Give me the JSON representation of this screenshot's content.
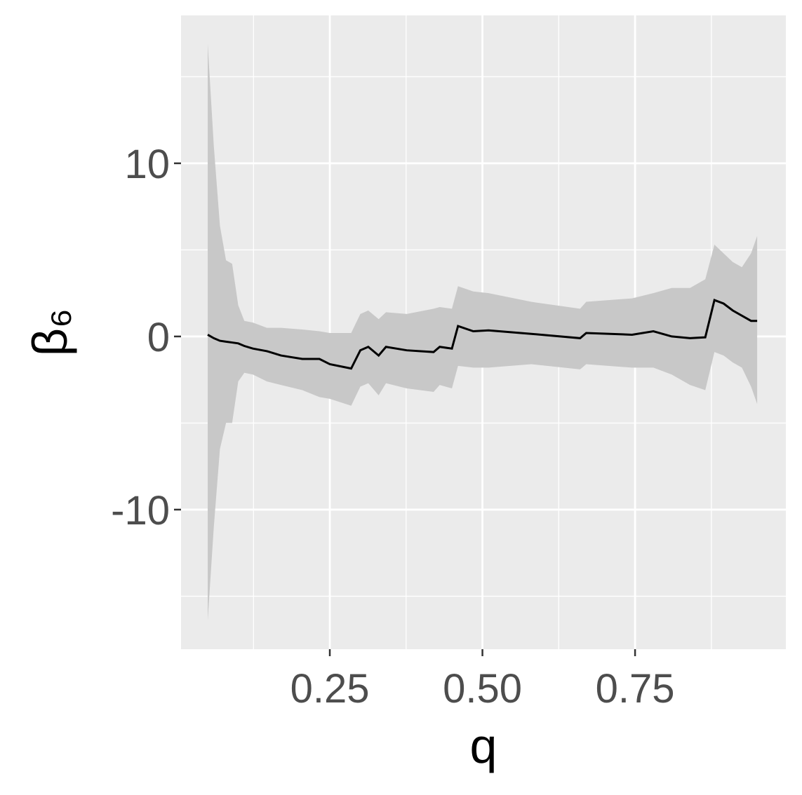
{
  "chart_data": {
    "type": "ribbon-line",
    "x_label": "q",
    "y_label": "β₆",
    "x": [
      0.05,
      0.06,
      0.07,
      0.08,
      0.09,
      0.1,
      0.11,
      0.124,
      0.147,
      0.17,
      0.205,
      0.233,
      0.25,
      0.285,
      0.3,
      0.313,
      0.33,
      0.342,
      0.376,
      0.42,
      0.43,
      0.45,
      0.46,
      0.485,
      0.51,
      0.58,
      0.66,
      0.67,
      0.745,
      0.78,
      0.81,
      0.84,
      0.865,
      0.88,
      0.895,
      0.91,
      0.925,
      0.94,
      0.95
    ],
    "y": [
      0.1,
      -0.1,
      -0.25,
      -0.3,
      -0.35,
      -0.4,
      -0.55,
      -0.7,
      -0.85,
      -1.1,
      -1.3,
      -1.3,
      -1.6,
      -1.85,
      -0.8,
      -0.6,
      -1.1,
      -0.6,
      -0.8,
      -0.9,
      -0.6,
      -0.7,
      0.6,
      0.3,
      0.35,
      0.15,
      -0.1,
      0.2,
      0.1,
      0.3,
      0.0,
      -0.1,
      -0.05,
      2.1,
      1.9,
      1.5,
      1.2,
      0.9,
      0.9
    ],
    "lower": [
      -16.4,
      -11,
      -6.5,
      -5.0,
      -5.0,
      -2.6,
      -2.1,
      -2.2,
      -2.6,
      -2.8,
      -3.1,
      -3.5,
      -3.6,
      -4.0,
      -2.9,
      -2.7,
      -3.4,
      -2.7,
      -3.0,
      -3.2,
      -2.8,
      -3.0,
      -1.7,
      -1.8,
      -1.8,
      -1.6,
      -1.9,
      -1.6,
      -1.8,
      -1.8,
      -2.2,
      -2.8,
      -3.1,
      -0.9,
      -1.1,
      -1.5,
      -1.8,
      -2.9,
      -3.9
    ],
    "upper": [
      16.9,
      11,
      6.4,
      4.4,
      4.2,
      1.8,
      0.9,
      0.8,
      0.5,
      0.5,
      0.4,
      0.3,
      0.2,
      0.2,
      1.3,
      1.5,
      1.0,
      1.4,
      1.3,
      1.6,
      1.7,
      1.6,
      2.9,
      2.6,
      2.5,
      2.0,
      1.6,
      2.0,
      2.2,
      2.5,
      2.8,
      2.8,
      3.3,
      5.3,
      4.8,
      4.3,
      4.0,
      4.8,
      5.8
    ],
    "line_color": "#000000",
    "ribbon_color": "#c8c8c8",
    "xlim": [
      0.0063,
      0.997
    ],
    "xticks": [
      {
        "value": 0.25,
        "label": "0.25"
      },
      {
        "value": 0.5,
        "label": "0.50"
      },
      {
        "value": 0.75,
        "label": "0.75"
      }
    ],
    "ylim": [
      -18.06,
      18.54
    ],
    "yticks": [
      -10,
      0,
      10
    ],
    "grid": true
  }
}
